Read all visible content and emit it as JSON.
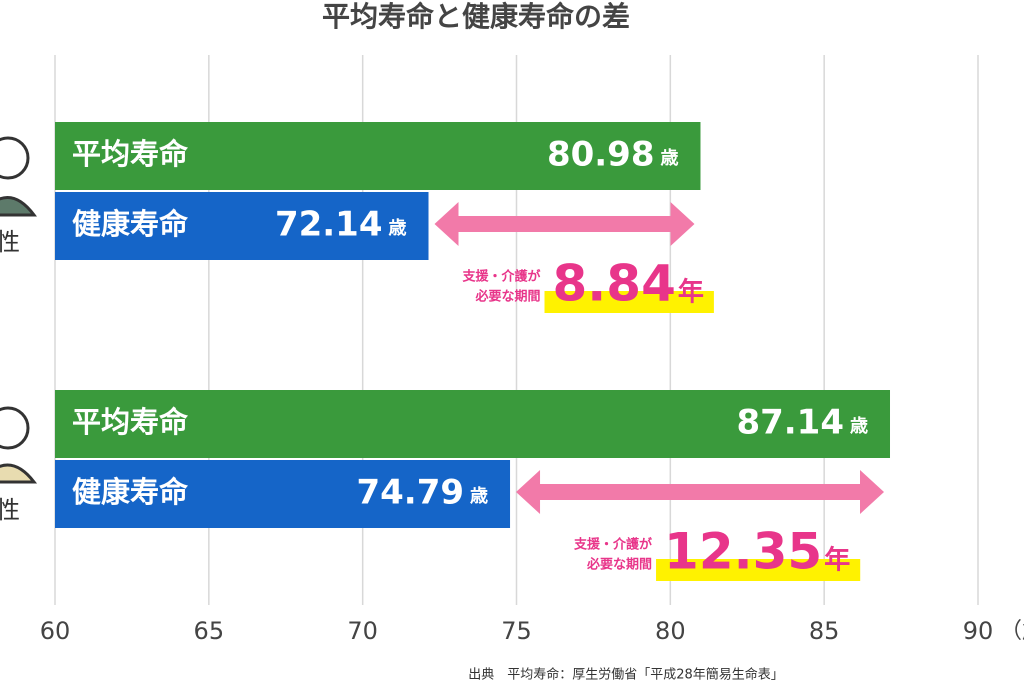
{
  "chart_data": {
    "type": "bar",
    "orientation": "horizontal",
    "title": "平均寿命と健康寿命の差",
    "groups": [
      "性",
      "性"
    ],
    "series": [
      {
        "name": "平均寿命",
        "color": "#3a9a3c",
        "values": [
          80.98,
          87.14
        ]
      },
      {
        "name": "健康寿命",
        "color": "#1565c8",
        "values": [
          72.14,
          74.79
        ]
      }
    ],
    "unit": "歳",
    "gap_label": [
      "支援・介護が",
      "必要な期間"
    ],
    "gaps": [
      8.84,
      12.35
    ],
    "gap_unit": "年",
    "gap_color": "#e8358a",
    "xlim": [
      60,
      90
    ],
    "xticks": [
      60,
      65,
      70,
      75,
      80,
      85,
      90
    ],
    "x_label": "（歳",
    "grid": true,
    "source": "出典　平均寿命：厚生労働省「平成28年簡易生命表」"
  }
}
